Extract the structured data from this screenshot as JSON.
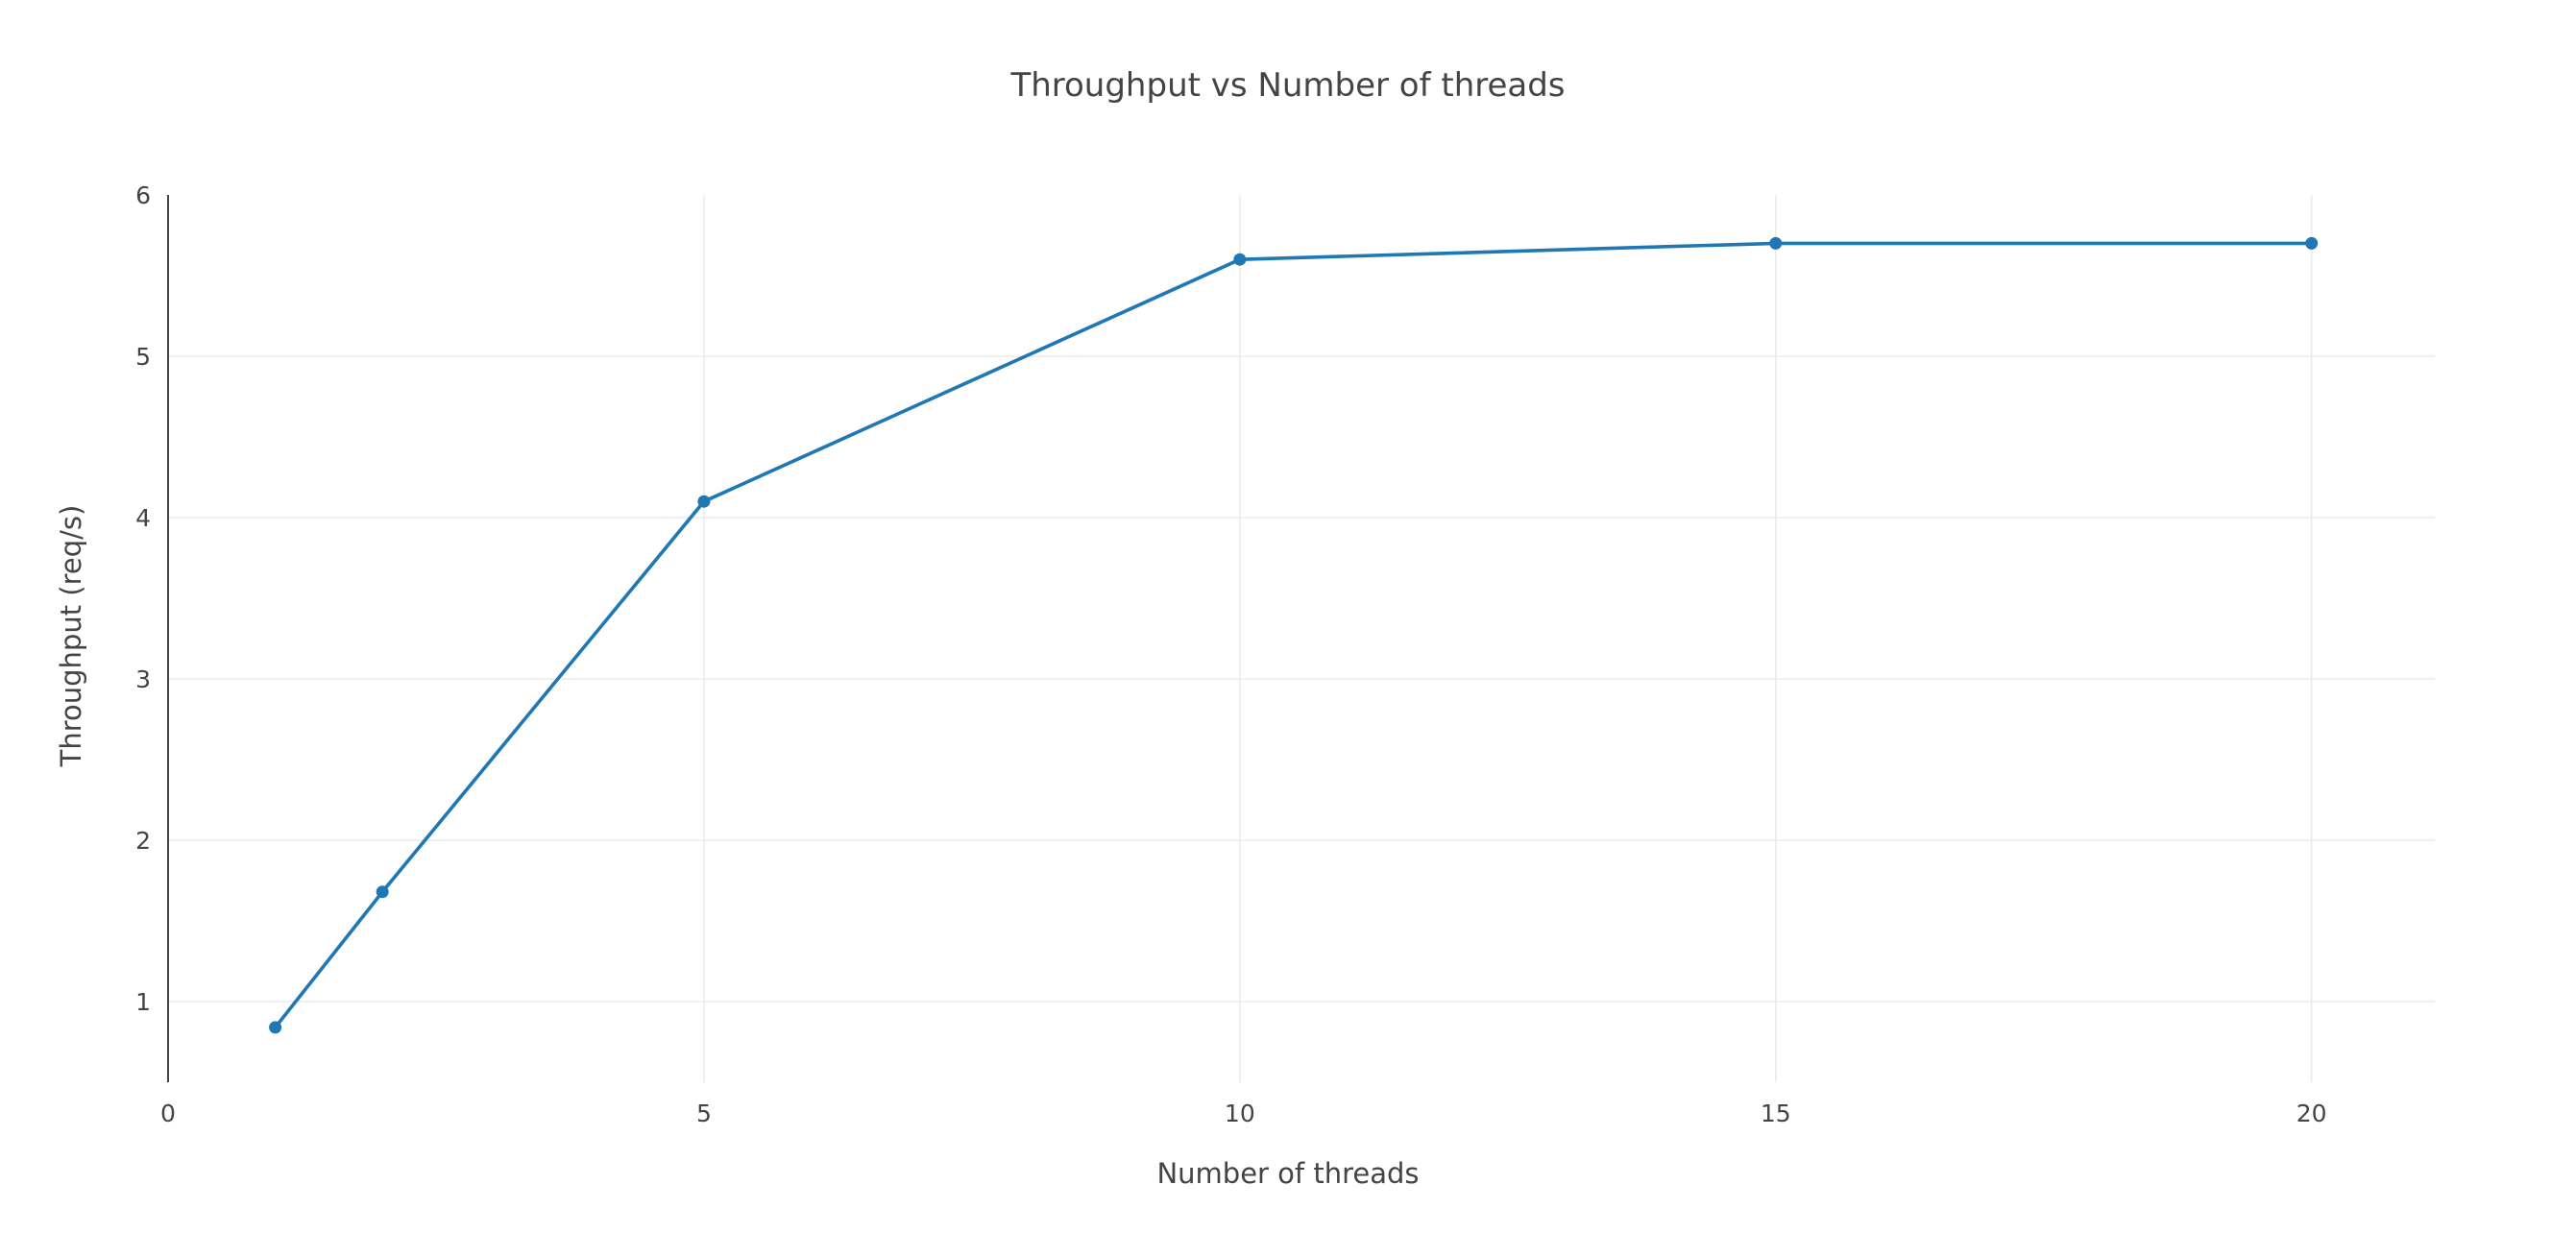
{
  "colors": {
    "series": "#1f77b4",
    "text": "#444444",
    "grid": "#ebebeb",
    "background": "#ffffff"
  },
  "chart_data": {
    "type": "line",
    "title": "Throughput vs Number of threads",
    "xlabel": "Number of threads",
    "ylabel": "Throughput (req/s)",
    "xlim": [
      0,
      21.15
    ],
    "ylim": [
      0.5,
      6
    ],
    "xticks": [
      0,
      5,
      10,
      15,
      20
    ],
    "yticks": [
      1,
      2,
      3,
      4,
      5,
      6
    ],
    "xtick_labels": [
      "0",
      "5",
      "10",
      "15",
      "20"
    ],
    "ytick_labels": [
      "1",
      "2",
      "3",
      "4",
      "5",
      "6"
    ],
    "grid": true,
    "legend": "none",
    "series": [
      {
        "x": [
          1,
          2,
          5,
          10,
          15,
          20
        ],
        "y": [
          0.84,
          1.68,
          4.1,
          5.6,
          5.7,
          5.7
        ],
        "markers": true
      }
    ]
  }
}
